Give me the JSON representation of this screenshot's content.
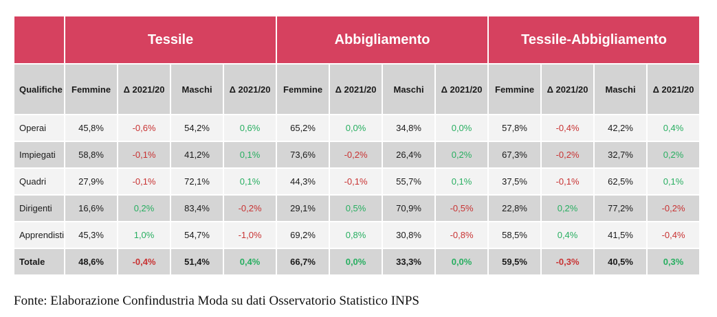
{
  "chart_data": {
    "type": "table",
    "row_header": "Qualifiche",
    "column_groups": [
      "Tessile",
      "Abbigliamento",
      "Tessile-Abbigliamento"
    ],
    "sub_columns": [
      "Femmine",
      "Δ 2021/20",
      "Maschi",
      "Δ 2021/20"
    ],
    "rows": [
      {
        "label": "Operai",
        "cells": [
          "45,8%",
          "-0,6%",
          "54,2%",
          "0,6%",
          "65,2%",
          "0,0%",
          "34,8%",
          "0,0%",
          "57,8%",
          "-0,4%",
          "42,2%",
          "0,4%"
        ]
      },
      {
        "label": "Impiegati",
        "cells": [
          "58,8%",
          "-0,1%",
          "41,2%",
          "0,1%",
          "73,6%",
          "-0,2%",
          "26,4%",
          "0,2%",
          "67,3%",
          "-0,2%",
          "32,7%",
          "0,2%"
        ]
      },
      {
        "label": "Quadri",
        "cells": [
          "27,9%",
          "-0,1%",
          "72,1%",
          "0,1%",
          "44,3%",
          "-0,1%",
          "55,7%",
          "0,1%",
          "37,5%",
          "-0,1%",
          "62,5%",
          "0,1%"
        ]
      },
      {
        "label": "Dirigenti",
        "cells": [
          "16,6%",
          "0,2%",
          "83,4%",
          "-0,2%",
          "29,1%",
          "0,5%",
          "70,9%",
          "-0,5%",
          "22,8%",
          "0,2%",
          "77,2%",
          "-0,2%"
        ]
      },
      {
        "label": "Apprendisti",
        "cells": [
          "45,3%",
          "1,0%",
          "54,7%",
          "-1,0%",
          "69,2%",
          "0,8%",
          "30,8%",
          "-0,8%",
          "58,5%",
          "0,4%",
          "41,5%",
          "-0,4%"
        ]
      },
      {
        "label": "Totale",
        "cells": [
          "48,6%",
          "-0,4%",
          "51,4%",
          "0,4%",
          "66,7%",
          "0,0%",
          "33,3%",
          "0,0%",
          "59,5%",
          "-0,3%",
          "40,5%",
          "0,3%"
        ]
      }
    ],
    "source": "Fonte: Elaborazione Confindustria Moda su dati Osservatorio Statistico INPS"
  },
  "colors": {
    "header_red": "#d6415f",
    "positive_green": "#27ae60",
    "negative_red": "#c83232",
    "subheader_gray": "#d3d3d3",
    "row_light": "#f3f3f3",
    "row_dark": "#d5d5d5"
  }
}
